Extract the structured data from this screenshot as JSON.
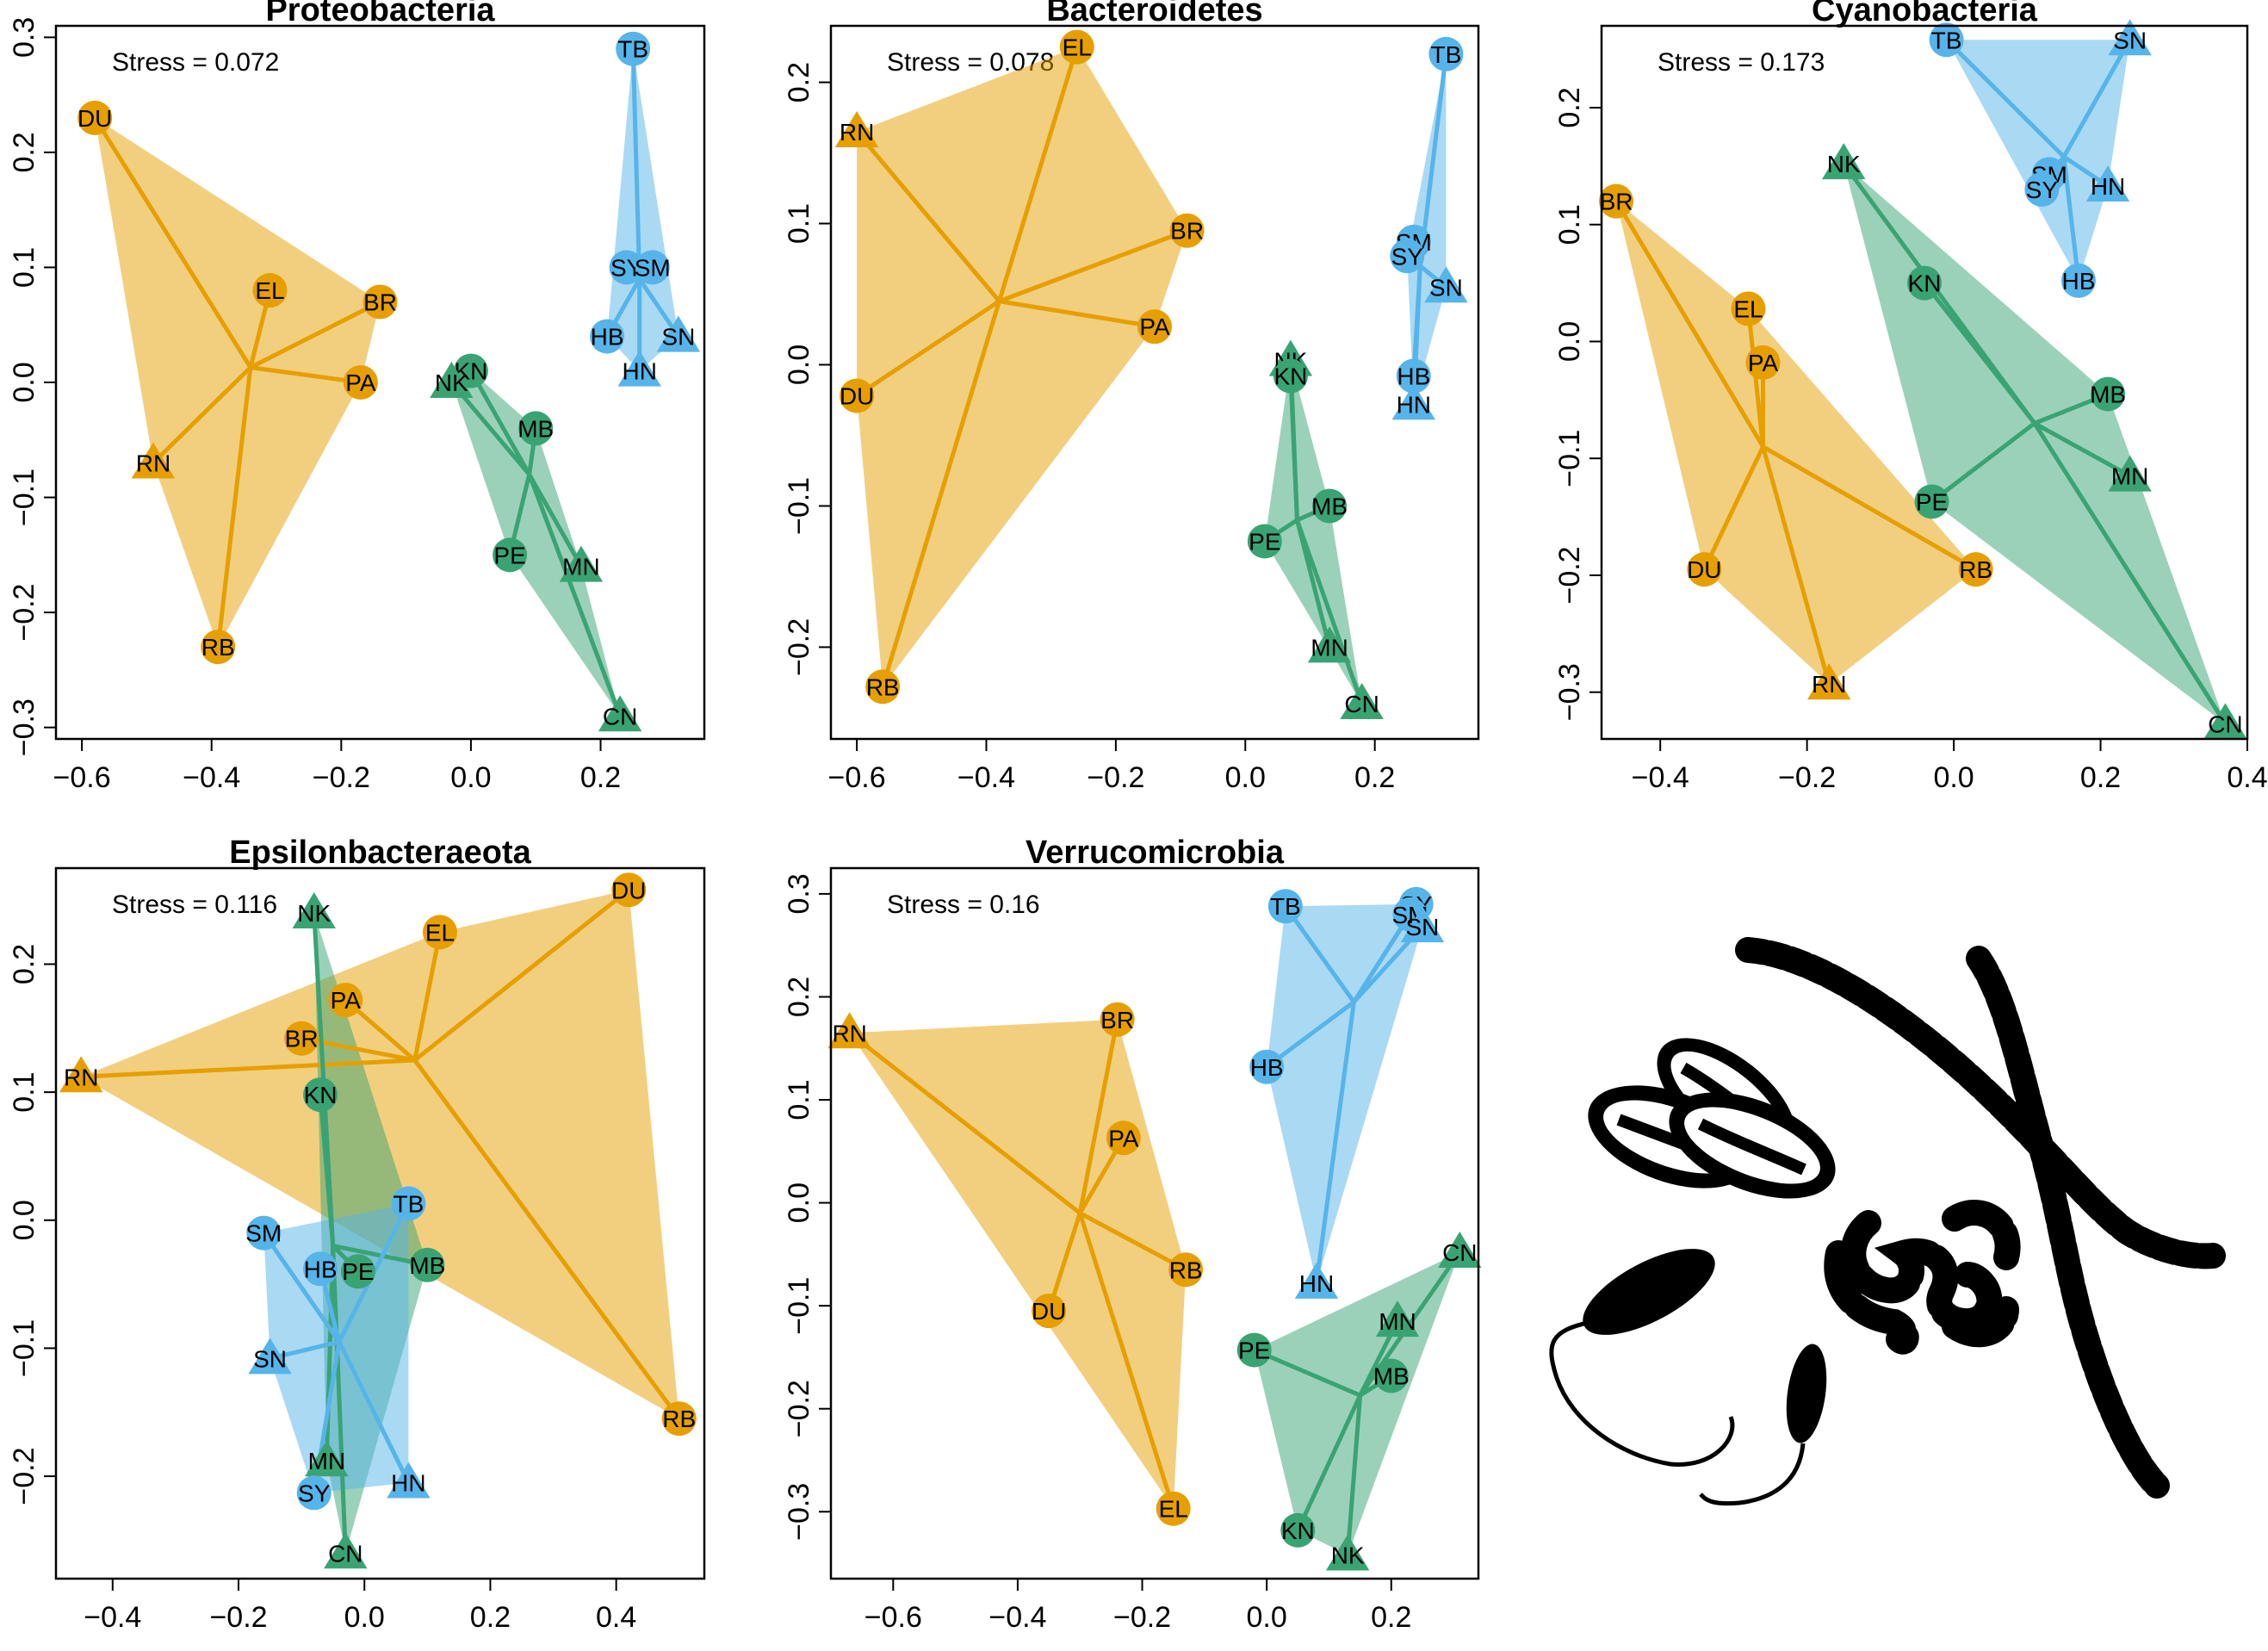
{
  "colors": {
    "orange": "#E69F00",
    "green": "#3AA374",
    "blue": "#56B4E9",
    "axis": "#000000"
  },
  "chart_data": [
    {
      "type": "scatter",
      "title": "Proteobacteria",
      "stress": "Stress = 0.072",
      "xlim": [
        -0.64,
        0.36
      ],
      "ylim": [
        -0.31,
        0.31
      ],
      "xticks": [
        -0.6,
        -0.4,
        -0.2,
        0.0,
        0.2
      ],
      "xtick_labels": [
        "−0.6",
        "−0.4",
        "−0.2",
        "0.0",
        "0.2"
      ],
      "yticks": [
        -0.3,
        -0.2,
        -0.1,
        0.0,
        0.1,
        0.2,
        0.3
      ],
      "ytick_labels": [
        "−0.3",
        "−0.2",
        "−0.1",
        "0.0",
        "0.1",
        "0.2",
        "0.3"
      ],
      "groups": [
        {
          "color": "orange",
          "centroid": [
            -0.34,
            0.013
          ],
          "points": [
            {
              "label": "DU",
              "x": -0.58,
              "y": 0.23,
              "shape": "circle"
            },
            {
              "label": "EL",
              "x": -0.31,
              "y": 0.08,
              "shape": "circle"
            },
            {
              "label": "BR",
              "x": -0.14,
              "y": 0.07,
              "shape": "circle"
            },
            {
              "label": "PA",
              "x": -0.17,
              "y": 0.0,
              "shape": "circle"
            },
            {
              "label": "RN",
              "x": -0.49,
              "y": -0.07,
              "shape": "triangle"
            },
            {
              "label": "RB",
              "x": -0.39,
              "y": -0.23,
              "shape": "circle"
            }
          ]
        },
        {
          "color": "green",
          "centroid": [
            0.09,
            -0.08
          ],
          "points": [
            {
              "label": "KN",
              "x": 0.0,
              "y": 0.01,
              "shape": "circle"
            },
            {
              "label": "NK",
              "x": -0.03,
              "y": -0.0,
              "shape": "triangle"
            },
            {
              "label": "MB",
              "x": 0.1,
              "y": -0.04,
              "shape": "circle"
            },
            {
              "label": "PE",
              "x": 0.06,
              "y": -0.15,
              "shape": "circle"
            },
            {
              "label": "MN",
              "x": 0.17,
              "y": -0.16,
              "shape": "triangle"
            },
            {
              "label": "CN",
              "x": 0.23,
              "y": -0.29,
              "shape": "triangle"
            }
          ]
        },
        {
          "color": "blue",
          "centroid": [
            0.26,
            0.09
          ],
          "points": [
            {
              "label": "TB",
              "x": 0.25,
              "y": 0.29,
              "shape": "circle"
            },
            {
              "label": "SY",
              "x": 0.24,
              "y": 0.1,
              "shape": "circle"
            },
            {
              "label": "SM",
              "x": 0.28,
              "y": 0.1,
              "shape": "circle"
            },
            {
              "label": "HB",
              "x": 0.21,
              "y": 0.04,
              "shape": "circle"
            },
            {
              "label": "SN",
              "x": 0.32,
              "y": 0.04,
              "shape": "triangle"
            },
            {
              "label": "HN",
              "x": 0.26,
              "y": 0.01,
              "shape": "triangle"
            }
          ]
        }
      ]
    },
    {
      "type": "scatter",
      "title": "Bacteroidetes",
      "stress": "Stress = 0.078",
      "xlim": [
        -0.64,
        0.36
      ],
      "ylim": [
        -0.265,
        0.24
      ],
      "xticks": [
        -0.6,
        -0.4,
        -0.2,
        0.0,
        0.2
      ],
      "xtick_labels": [
        "−0.6",
        "−0.4",
        "−0.2",
        "0.0",
        "0.2"
      ],
      "yticks": [
        -0.2,
        -0.1,
        0.0,
        0.1,
        0.2
      ],
      "ytick_labels": [
        "−0.2",
        "−0.1",
        "0.0",
        "0.1",
        "0.2"
      ],
      "groups": [
        {
          "color": "orange",
          "centroid": [
            -0.38,
            0.045
          ],
          "points": [
            {
              "label": "EL",
              "x": -0.26,
              "y": 0.225,
              "shape": "circle"
            },
            {
              "label": "RN",
              "x": -0.6,
              "y": 0.165,
              "shape": "triangle"
            },
            {
              "label": "BR",
              "x": -0.09,
              "y": 0.095,
              "shape": "circle"
            },
            {
              "label": "PA",
              "x": -0.14,
              "y": 0.027,
              "shape": "circle"
            },
            {
              "label": "DU",
              "x": -0.6,
              "y": -0.022,
              "shape": "circle"
            },
            {
              "label": "RB",
              "x": -0.56,
              "y": -0.228,
              "shape": "circle"
            }
          ]
        },
        {
          "color": "green",
          "centroid": [
            0.08,
            -0.11
          ],
          "points": [
            {
              "label": "NK",
              "x": 0.07,
              "y": 0.003,
              "shape": "triangle"
            },
            {
              "label": "KN",
              "x": 0.07,
              "y": -0.008,
              "shape": "circle"
            },
            {
              "label": "MB",
              "x": 0.13,
              "y": -0.1,
              "shape": "circle"
            },
            {
              "label": "PE",
              "x": 0.03,
              "y": -0.125,
              "shape": "circle"
            },
            {
              "label": "MN",
              "x": 0.13,
              "y": -0.2,
              "shape": "triangle"
            },
            {
              "label": "CN",
              "x": 0.18,
              "y": -0.24,
              "shape": "triangle"
            }
          ]
        },
        {
          "color": "blue",
          "centroid": [
            0.27,
            0.07
          ],
          "points": [
            {
              "label": "TB",
              "x": 0.31,
              "y": 0.22,
              "shape": "circle"
            },
            {
              "label": "SM",
              "x": 0.26,
              "y": 0.087,
              "shape": "circle"
            },
            {
              "label": "SY",
              "x": 0.25,
              "y": 0.077,
              "shape": "circle"
            },
            {
              "label": "SN",
              "x": 0.31,
              "y": 0.055,
              "shape": "triangle"
            },
            {
              "label": "HB",
              "x": 0.26,
              "y": -0.008,
              "shape": "circle"
            },
            {
              "label": "HN",
              "x": 0.26,
              "y": -0.028,
              "shape": "triangle"
            }
          ]
        }
      ]
    },
    {
      "type": "scatter",
      "title": "Cyanobacteria",
      "stress": "Stress = 0.173",
      "xlim": [
        -0.48,
        0.4
      ],
      "ylim": [
        -0.34,
        0.27
      ],
      "xticks": [
        -0.4,
        -0.2,
        0.0,
        0.2,
        0.4
      ],
      "xtick_labels": [
        "−0.4",
        "−0.2",
        "0.0",
        "0.2",
        "0.4"
      ],
      "yticks": [
        -0.3,
        -0.2,
        -0.1,
        0.0,
        0.1,
        0.2
      ],
      "ytick_labels": [
        "−0.3",
        "−0.2",
        "−0.1",
        "0.0",
        "0.1",
        "0.2"
      ],
      "groups": [
        {
          "color": "orange",
          "centroid": [
            -0.26,
            -0.09
          ],
          "points": [
            {
              "label": "BR",
              "x": -0.46,
              "y": 0.12,
              "shape": "circle"
            },
            {
              "label": "EL",
              "x": -0.28,
              "y": 0.028,
              "shape": "circle"
            },
            {
              "label": "PA",
              "x": -0.26,
              "y": -0.018,
              "shape": "circle"
            },
            {
              "label": "DU",
              "x": -0.34,
              "y": -0.195,
              "shape": "circle"
            },
            {
              "label": "RB",
              "x": 0.03,
              "y": -0.195,
              "shape": "circle"
            },
            {
              "label": "RN",
              "x": -0.17,
              "y": -0.293,
              "shape": "triangle"
            }
          ]
        },
        {
          "color": "green",
          "centroid": [
            0.11,
            -0.07
          ],
          "points": [
            {
              "label": "NK",
              "x": -0.15,
              "y": 0.152,
              "shape": "triangle"
            },
            {
              "label": "KN",
              "x": -0.04,
              "y": 0.05,
              "shape": "circle"
            },
            {
              "label": "MB",
              "x": 0.21,
              "y": -0.045,
              "shape": "circle"
            },
            {
              "label": "MN",
              "x": 0.24,
              "y": -0.115,
              "shape": "triangle"
            },
            {
              "label": "PE",
              "x": -0.03,
              "y": -0.137,
              "shape": "circle"
            },
            {
              "label": "CN",
              "x": 0.37,
              "y": -0.327,
              "shape": "triangle"
            }
          ]
        },
        {
          "color": "blue",
          "centroid": [
            0.15,
            0.158
          ],
          "points": [
            {
              "label": "TB",
              "x": -0.01,
              "y": 0.258,
              "shape": "circle"
            },
            {
              "label": "SN",
              "x": 0.24,
              "y": 0.258,
              "shape": "triangle"
            },
            {
              "label": "SM",
              "x": 0.13,
              "y": 0.143,
              "shape": "circle"
            },
            {
              "label": "HN",
              "x": 0.21,
              "y": 0.133,
              "shape": "triangle"
            },
            {
              "label": "SY",
              "x": 0.12,
              "y": 0.13,
              "shape": "circle"
            },
            {
              "label": "HB",
              "x": 0.17,
              "y": 0.052,
              "shape": "circle"
            }
          ]
        }
      ]
    },
    {
      "type": "scatter",
      "title": "Epsilonbacteraeota",
      "stress": "Stress = 0.116",
      "xlim": [
        -0.49,
        0.54
      ],
      "ylim": [
        -0.28,
        0.275
      ],
      "xticks": [
        -0.4,
        -0.2,
        0.0,
        0.2,
        0.4
      ],
      "xtick_labels": [
        "−0.4",
        "−0.2",
        "0.0",
        "0.2",
        "0.4"
      ],
      "yticks": [
        -0.2,
        -0.1,
        0.0,
        0.1,
        0.2
      ],
      "ytick_labels": [
        "−0.2",
        "−0.1",
        "0.0",
        "0.1",
        "0.2"
      ],
      "groups": [
        {
          "color": "orange",
          "centroid": [
            0.08,
            0.125
          ],
          "points": [
            {
              "label": "DU",
              "x": 0.42,
              "y": 0.258,
              "shape": "circle"
            },
            {
              "label": "EL",
              "x": 0.12,
              "y": 0.225,
              "shape": "circle"
            },
            {
              "label": "PA",
              "x": -0.03,
              "y": 0.172,
              "shape": "circle"
            },
            {
              "label": "BR",
              "x": -0.1,
              "y": 0.142,
              "shape": "circle"
            },
            {
              "label": "RN",
              "x": -0.45,
              "y": 0.112,
              "shape": "triangle"
            },
            {
              "label": "RB",
              "x": 0.5,
              "y": -0.155,
              "shape": "circle"
            }
          ]
        },
        {
          "color": "green",
          "centroid": [
            -0.05,
            -0.02
          ],
          "points": [
            {
              "label": "NK",
              "x": -0.08,
              "y": 0.24,
              "shape": "triangle"
            },
            {
              "label": "KN",
              "x": -0.07,
              "y": 0.098,
              "shape": "circle"
            },
            {
              "label": "MB",
              "x": 0.1,
              "y": -0.035,
              "shape": "circle"
            },
            {
              "label": "PE",
              "x": -0.01,
              "y": -0.04,
              "shape": "circle"
            },
            {
              "label": "MN",
              "x": -0.06,
              "y": -0.188,
              "shape": "triangle"
            },
            {
              "label": "CN",
              "x": -0.03,
              "y": -0.26,
              "shape": "triangle"
            }
          ]
        },
        {
          "color": "blue",
          "centroid": [
            -0.04,
            -0.095
          ],
          "points": [
            {
              "label": "TB",
              "x": 0.07,
              "y": 0.013,
              "shape": "circle"
            },
            {
              "label": "SM",
              "x": -0.16,
              "y": -0.01,
              "shape": "circle"
            },
            {
              "label": "HB",
              "x": -0.07,
              "y": -0.038,
              "shape": "circle"
            },
            {
              "label": "SN",
              "x": -0.15,
              "y": -0.108,
              "shape": "triangle"
            },
            {
              "label": "SY",
              "x": -0.08,
              "y": -0.213,
              "shape": "circle"
            },
            {
              "label": "HN",
              "x": 0.07,
              "y": -0.205,
              "shape": "triangle"
            }
          ]
        }
      ]
    },
    {
      "type": "scatter",
      "title": "Verrucomicrobia",
      "stress": "Stress = 0.16",
      "xlim": [
        -0.7,
        0.34
      ],
      "ylim": [
        -0.365,
        0.325
      ],
      "xticks": [
        -0.6,
        -0.4,
        -0.2,
        0.0,
        0.2
      ],
      "xtick_labels": [
        "−0.6",
        "−0.4",
        "−0.2",
        "0.0",
        "0.2"
      ],
      "yticks": [
        -0.3,
        -0.2,
        -0.1,
        0.0,
        0.1,
        0.2,
        0.3
      ],
      "ytick_labels": [
        "−0.3",
        "−0.2",
        "−0.1",
        "0.0",
        "0.1",
        "0.2",
        "0.3"
      ],
      "groups": [
        {
          "color": "orange",
          "centroid": [
            -0.3,
            -0.01
          ],
          "points": [
            {
              "label": "RN",
              "x": -0.67,
              "y": 0.165,
              "shape": "triangle"
            },
            {
              "label": "BR",
              "x": -0.24,
              "y": 0.178,
              "shape": "circle"
            },
            {
              "label": "PA",
              "x": -0.23,
              "y": 0.063,
              "shape": "circle"
            },
            {
              "label": "RB",
              "x": -0.13,
              "y": -0.065,
              "shape": "circle"
            },
            {
              "label": "DU",
              "x": -0.35,
              "y": -0.105,
              "shape": "circle"
            },
            {
              "label": "EL",
              "x": -0.15,
              "y": -0.297,
              "shape": "circle"
            }
          ]
        },
        {
          "color": "green",
          "centroid": [
            0.15,
            -0.187
          ],
          "points": [
            {
              "label": "CN",
              "x": 0.31,
              "y": -0.048,
              "shape": "triangle"
            },
            {
              "label": "MN",
              "x": 0.21,
              "y": -0.115,
              "shape": "triangle"
            },
            {
              "label": "PE",
              "x": -0.02,
              "y": -0.143,
              "shape": "circle"
            },
            {
              "label": "MB",
              "x": 0.2,
              "y": -0.168,
              "shape": "circle"
            },
            {
              "label": "KN",
              "x": 0.05,
              "y": -0.318,
              "shape": "circle"
            },
            {
              "label": "NK",
              "x": 0.13,
              "y": -0.342,
              "shape": "triangle"
            }
          ]
        },
        {
          "color": "blue",
          "centroid": [
            0.14,
            0.195
          ],
          "points": [
            {
              "label": "TB",
              "x": 0.03,
              "y": 0.288,
              "shape": "circle"
            },
            {
              "label": "SY",
              "x": 0.24,
              "y": 0.29,
              "shape": "circle"
            },
            {
              "label": "SM",
              "x": 0.23,
              "y": 0.28,
              "shape": "circle"
            },
            {
              "label": "SN",
              "x": 0.25,
              "y": 0.268,
              "shape": "triangle"
            },
            {
              "label": "HB",
              "x": 0.0,
              "y": 0.132,
              "shape": "circle"
            },
            {
              "label": "HN",
              "x": 0.08,
              "y": -0.078,
              "shape": "triangle"
            }
          ]
        }
      ]
    }
  ],
  "illustration": {
    "name": "bacteria-illustration"
  }
}
